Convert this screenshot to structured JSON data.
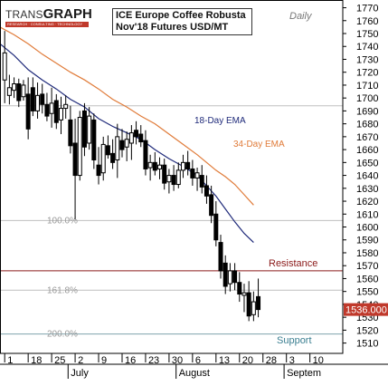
{
  "logo": {
    "brand_prefix": "TRANS",
    "brand_main": "GRAPH",
    "tagline": "RESEARCH · CONSULTING · TECHNOLOGY"
  },
  "chart_data": {
    "type": "candlestick",
    "title": "ICE Europe Coffee Robusta",
    "subtitle": "Nov'18 Futures USD/MT",
    "period_label": "Daily",
    "ylim": [
      1502,
      1776
    ],
    "xlim": [
      0,
      73
    ],
    "y_ticks": [
      1510,
      1520,
      1530,
      1540,
      1550,
      1560,
      1570,
      1580,
      1590,
      1600,
      1610,
      1620,
      1630,
      1640,
      1650,
      1660,
      1670,
      1680,
      1690,
      1700,
      1710,
      1720,
      1730,
      1740,
      1750,
      1760,
      1770
    ],
    "x_ticks": [
      {
        "label": "1",
        "x": 1
      },
      {
        "label": "18",
        "x": 6
      },
      {
        "label": "25",
        "x": 11
      },
      {
        "label": "2",
        "x": 16
      },
      {
        "label": "9",
        "x": 21
      },
      {
        "label": "16",
        "x": 26
      },
      {
        "label": "23",
        "x": 31
      },
      {
        "label": "30",
        "x": 36
      },
      {
        "label": "6",
        "x": 41
      },
      {
        "label": "13",
        "x": 46
      },
      {
        "label": "20",
        "x": 51
      },
      {
        "label": "28",
        "x": 56
      },
      {
        "label": "3",
        "x": 61
      },
      {
        "label": "10",
        "x": 66
      }
    ],
    "month_labels": [
      {
        "label": "July",
        "x": 14.5
      },
      {
        "label": "August",
        "x": 37.5
      },
      {
        "label": "Septem",
        "x": 60.5
      }
    ],
    "last_price": {
      "label": "1536.000",
      "value": 1536
    },
    "levels": [
      {
        "label": "100.0%",
        "value": 1605,
        "color": "#bfbfbf"
      },
      {
        "label": "161.8%",
        "value": 1551,
        "color": "#bfbfbf"
      },
      {
        "label": "200.0%",
        "value": 1517,
        "color": "#7fa3ad"
      },
      {
        "label": "",
        "value": 1694,
        "color": "#bfbfbf"
      }
    ],
    "annotations": [
      {
        "label": "Resistance",
        "value": 1566,
        "color": "#8b1a1a"
      },
      {
        "label": "Support",
        "value": 1512,
        "color": "#3b7f91"
      }
    ],
    "series": [
      {
        "name": "18-Day EMA",
        "color": "#1f2a7a",
        "x": [
          0,
          3,
          6,
          9,
          12,
          15,
          18,
          21,
          24,
          27,
          30,
          33,
          36,
          39,
          42,
          44,
          46,
          48,
          50,
          52,
          54
        ],
        "values": [
          1742,
          1733,
          1722,
          1714,
          1707,
          1699,
          1693,
          1684,
          1678,
          1673,
          1668,
          1660,
          1653,
          1647,
          1640,
          1632,
          1624,
          1614,
          1604,
          1595,
          1588
        ]
      },
      {
        "name": "34-Day EMA",
        "color": "#e07b39",
        "x": [
          0,
          3,
          6,
          9,
          12,
          15,
          18,
          21,
          24,
          27,
          30,
          33,
          36,
          39,
          42,
          44,
          46,
          48,
          50,
          52,
          54
        ],
        "values": [
          1755,
          1749,
          1742,
          1734,
          1727,
          1720,
          1714,
          1707,
          1699,
          1693,
          1686,
          1680,
          1672,
          1664,
          1656,
          1650,
          1644,
          1639,
          1633,
          1625,
          1617
        ]
      }
    ],
    "candles": [
      {
        "x": 1,
        "o": 1714,
        "h": 1752,
        "l": 1696,
        "c": 1735
      },
      {
        "x": 2,
        "o": 1702,
        "h": 1718,
        "l": 1695,
        "c": 1708
      },
      {
        "x": 3,
        "o": 1706,
        "h": 1716,
        "l": 1700,
        "c": 1711
      },
      {
        "x": 4,
        "o": 1711,
        "h": 1715,
        "l": 1693,
        "c": 1698
      },
      {
        "x": 5,
        "o": 1701,
        "h": 1714,
        "l": 1698,
        "c": 1710
      },
      {
        "x": 6,
        "o": 1703,
        "h": 1716,
        "l": 1668,
        "c": 1676
      },
      {
        "x": 7,
        "o": 1708,
        "h": 1716,
        "l": 1686,
        "c": 1690
      },
      {
        "x": 8,
        "o": 1690,
        "h": 1712,
        "l": 1684,
        "c": 1702
      },
      {
        "x": 9,
        "o": 1703,
        "h": 1711,
        "l": 1688,
        "c": 1695
      },
      {
        "x": 10,
        "o": 1695,
        "h": 1704,
        "l": 1682,
        "c": 1686
      },
      {
        "x": 11,
        "o": 1688,
        "h": 1708,
        "l": 1677,
        "c": 1696
      },
      {
        "x": 12,
        "o": 1698,
        "h": 1703,
        "l": 1676,
        "c": 1681
      },
      {
        "x": 13,
        "o": 1683,
        "h": 1701,
        "l": 1672,
        "c": 1692
      },
      {
        "x": 14,
        "o": 1692,
        "h": 1702,
        "l": 1684,
        "c": 1695
      },
      {
        "x": 15,
        "o": 1683,
        "h": 1694,
        "l": 1657,
        "c": 1663
      },
      {
        "x": 16,
        "o": 1665,
        "h": 1684,
        "l": 1606,
        "c": 1640
      },
      {
        "x": 17,
        "o": 1640,
        "h": 1690,
        "l": 1636,
        "c": 1685
      },
      {
        "x": 18,
        "o": 1690,
        "h": 1696,
        "l": 1655,
        "c": 1662
      },
      {
        "x": 19,
        "o": 1665,
        "h": 1693,
        "l": 1660,
        "c": 1686
      },
      {
        "x": 20,
        "o": 1683,
        "h": 1688,
        "l": 1645,
        "c": 1652
      },
      {
        "x": 21,
        "o": 1648,
        "h": 1662,
        "l": 1633,
        "c": 1640
      },
      {
        "x": 22,
        "o": 1642,
        "h": 1670,
        "l": 1636,
        "c": 1664
      },
      {
        "x": 23,
        "o": 1663,
        "h": 1671,
        "l": 1653,
        "c": 1656
      },
      {
        "x": 24,
        "o": 1657,
        "h": 1668,
        "l": 1645,
        "c": 1650
      },
      {
        "x": 25,
        "o": 1652,
        "h": 1680,
        "l": 1638,
        "c": 1670
      },
      {
        "x": 26,
        "o": 1667,
        "h": 1676,
        "l": 1654,
        "c": 1660
      },
      {
        "x": 27,
        "o": 1662,
        "h": 1674,
        "l": 1651,
        "c": 1668
      },
      {
        "x": 28,
        "o": 1665,
        "h": 1679,
        "l": 1652,
        "c": 1673
      },
      {
        "x": 29,
        "o": 1675,
        "h": 1682,
        "l": 1664,
        "c": 1670
      },
      {
        "x": 30,
        "o": 1672,
        "h": 1679,
        "l": 1662,
        "c": 1666
      },
      {
        "x": 31,
        "o": 1667,
        "h": 1675,
        "l": 1640,
        "c": 1645
      },
      {
        "x": 32,
        "o": 1646,
        "h": 1656,
        "l": 1636,
        "c": 1650
      },
      {
        "x": 33,
        "o": 1650,
        "h": 1658,
        "l": 1640,
        "c": 1644
      },
      {
        "x": 34,
        "o": 1645,
        "h": 1654,
        "l": 1637,
        "c": 1648
      },
      {
        "x": 35,
        "o": 1648,
        "h": 1653,
        "l": 1629,
        "c": 1634
      },
      {
        "x": 36,
        "o": 1635,
        "h": 1645,
        "l": 1626,
        "c": 1640
      },
      {
        "x": 37,
        "o": 1640,
        "h": 1648,
        "l": 1628,
        "c": 1633
      },
      {
        "x": 38,
        "o": 1633,
        "h": 1650,
        "l": 1630,
        "c": 1644
      },
      {
        "x": 39,
        "o": 1644,
        "h": 1656,
        "l": 1638,
        "c": 1650
      },
      {
        "x": 40,
        "o": 1650,
        "h": 1659,
        "l": 1640,
        "c": 1645
      },
      {
        "x": 41,
        "o": 1645,
        "h": 1652,
        "l": 1632,
        "c": 1638
      },
      {
        "x": 42,
        "o": 1638,
        "h": 1646,
        "l": 1628,
        "c": 1642
      },
      {
        "x": 43,
        "o": 1640,
        "h": 1648,
        "l": 1626,
        "c": 1631
      },
      {
        "x": 44,
        "o": 1632,
        "h": 1640,
        "l": 1618,
        "c": 1624
      },
      {
        "x": 45,
        "o": 1625,
        "h": 1632,
        "l": 1603,
        "c": 1609
      },
      {
        "x": 46,
        "o": 1610,
        "h": 1620,
        "l": 1585,
        "c": 1590
      },
      {
        "x": 47,
        "o": 1588,
        "h": 1594,
        "l": 1560,
        "c": 1566
      },
      {
        "x": 48,
        "o": 1572,
        "h": 1578,
        "l": 1548,
        "c": 1554
      },
      {
        "x": 49,
        "o": 1556,
        "h": 1572,
        "l": 1550,
        "c": 1566
      },
      {
        "x": 50,
        "o": 1566,
        "h": 1572,
        "l": 1551,
        "c": 1557
      },
      {
        "x": 51,
        "o": 1557,
        "h": 1565,
        "l": 1542,
        "c": 1548
      },
      {
        "x": 52,
        "o": 1547,
        "h": 1556,
        "l": 1534,
        "c": 1549
      },
      {
        "x": 53,
        "o": 1549,
        "h": 1558,
        "l": 1527,
        "c": 1531
      },
      {
        "x": 54,
        "o": 1532,
        "h": 1550,
        "l": 1527,
        "c": 1542
      },
      {
        "x": 55,
        "o": 1546,
        "h": 1560,
        "l": 1530,
        "c": 1536
      }
    ]
  }
}
